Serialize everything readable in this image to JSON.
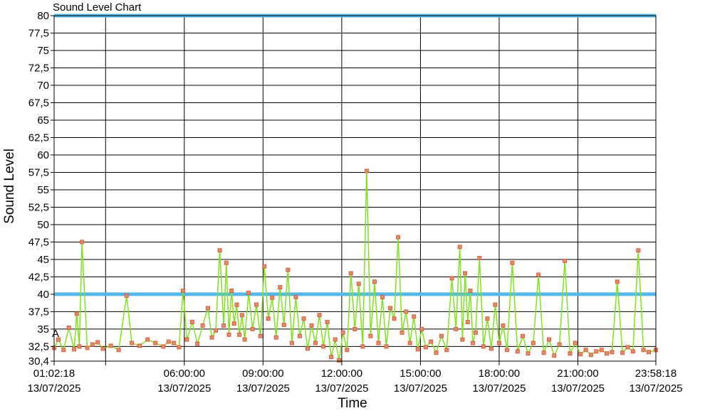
{
  "title": "Sound Level Chart",
  "chart_data": {
    "type": "line",
    "title": "Sound Level Chart",
    "xlabel": "Time",
    "ylabel": "Sound Level",
    "ylim": [
      30.4,
      80
    ],
    "xlim": [
      "13/07/2025 01:02:18",
      "13/07/2025 23:58:18"
    ],
    "grid": true,
    "y_ticks": [
      "30,4",
      "32,5",
      "35",
      "37,5",
      "40",
      "42,5",
      "45",
      "47,5",
      "50",
      "52,5",
      "55",
      "57,5",
      "60",
      "62,5",
      "65",
      "67,5",
      "70",
      "72,5",
      "75",
      "77,5",
      "80"
    ],
    "y_tick_values": [
      30.4,
      32.5,
      35,
      37.5,
      40,
      42.5,
      45,
      47.5,
      50,
      52.5,
      55,
      57.5,
      60,
      62.5,
      65,
      67.5,
      70,
      72.5,
      75,
      77.5,
      80
    ],
    "x_ticks": [
      {
        "time": "01:02:18",
        "date": "13/07/2025",
        "hours": 1.0383
      },
      {
        "time": "06:00:00",
        "date": "13/07/2025",
        "hours": 6
      },
      {
        "time": "09:00:00",
        "date": "13/07/2025",
        "hours": 9
      },
      {
        "time": "12:00:00",
        "date": "13/07/2025",
        "hours": 12
      },
      {
        "time": "15:00:00",
        "date": "13/07/2025",
        "hours": 15
      },
      {
        "time": "18:00:00",
        "date": "13/07/2025",
        "hours": 18
      },
      {
        "time": "21:00:00",
        "date": "13/07/2025",
        "hours": 21
      },
      {
        "time": "23:58:18",
        "date": "13/07/2025",
        "hours": 23.9717
      }
    ],
    "x_gridlines_hours": [
      3,
      6,
      9,
      12,
      15,
      18,
      21
    ],
    "reference_lines": [
      {
        "value": 40,
        "color": "#55B8EA"
      },
      {
        "value": 80,
        "color": "#55B8EA"
      }
    ],
    "annotations": [
      {
        "text": "A",
        "hours": 1.12,
        "value": 34.4
      }
    ],
    "series": [
      {
        "line_color": "#7FE21E",
        "marker_color": "#E35A36",
        "marker_fill": "#D89070",
        "x_hours": [
          1.04,
          1.2,
          1.4,
          1.6,
          1.8,
          1.9,
          2.0,
          2.1,
          2.3,
          2.5,
          2.7,
          2.9,
          3.2,
          3.5,
          3.8,
          4.0,
          4.3,
          4.6,
          4.9,
          5.2,
          5.4,
          5.6,
          5.8,
          5.95,
          6.1,
          6.3,
          6.5,
          6.7,
          6.9,
          7.05,
          7.2,
          7.35,
          7.5,
          7.6,
          7.7,
          7.8,
          7.9,
          8.0,
          8.1,
          8.2,
          8.3,
          8.45,
          8.6,
          8.75,
          8.9,
          9.05,
          9.2,
          9.35,
          9.5,
          9.65,
          9.8,
          9.95,
          10.1,
          10.25,
          10.4,
          10.55,
          10.7,
          10.85,
          11.0,
          11.15,
          11.3,
          11.45,
          11.6,
          11.75,
          11.9,
          12.05,
          12.2,
          12.35,
          12.5,
          12.65,
          12.8,
          12.95,
          13.1,
          13.25,
          13.4,
          13.55,
          13.7,
          13.85,
          14.0,
          14.15,
          14.3,
          14.45,
          14.6,
          14.75,
          14.9,
          15.05,
          15.2,
          15.4,
          15.6,
          15.8,
          16.0,
          16.2,
          16.35,
          16.5,
          16.6,
          16.7,
          16.8,
          16.9,
          17.0,
          17.1,
          17.25,
          17.4,
          17.55,
          17.7,
          17.85,
          18.0,
          18.15,
          18.3,
          18.5,
          18.7,
          18.9,
          19.1,
          19.3,
          19.5,
          19.7,
          19.9,
          20.1,
          20.3,
          20.5,
          20.7,
          20.9,
          21.1,
          21.3,
          21.5,
          21.7,
          21.9,
          22.1,
          22.3,
          22.5,
          22.7,
          22.9,
          23.1,
          23.3,
          23.5,
          23.7,
          23.97
        ],
        "values": [
          32.3,
          33.5,
          32.0,
          35.2,
          32.1,
          37.2,
          32.5,
          47.5,
          32.3,
          32.8,
          33.1,
          32.2,
          32.6,
          32.0,
          39.8,
          33.0,
          32.6,
          33.5,
          33.0,
          32.5,
          33.2,
          33.0,
          32.4,
          40.5,
          33.5,
          36.0,
          32.9,
          35.5,
          38.0,
          33.8,
          34.8,
          46.3,
          35.5,
          44.5,
          34.2,
          40.5,
          35.8,
          38.5,
          34.2,
          37.0,
          33.5,
          40.2,
          35.0,
          38.5,
          34.0,
          44.0,
          36.5,
          39.5,
          33.8,
          41.0,
          35.6,
          43.5,
          33.0,
          39.6,
          34.0,
          36.5,
          32.2,
          35.5,
          33.0,
          37.0,
          32.5,
          36.0,
          31.0,
          33.5,
          30.5,
          34.5,
          32.0,
          43.0,
          35.0,
          41.5,
          32.5,
          57.7,
          34.0,
          41.8,
          33.0,
          39.6,
          32.5,
          38.0,
          36.5,
          48.2,
          34.5,
          37.5,
          33.0,
          36.8,
          32.1,
          35.0,
          32.4,
          33.2,
          31.6,
          34.0,
          32.0,
          42.3,
          35.0,
          46.8,
          33.5,
          43.0,
          36.0,
          40.5,
          33.0,
          34.5,
          45.2,
          32.5,
          36.5,
          32.2,
          38.5,
          33.0,
          35.5,
          32.0,
          44.5,
          31.8,
          34.0,
          31.5,
          33.0,
          42.8,
          31.6,
          33.5,
          31.2,
          32.8,
          44.8,
          31.5,
          33.0,
          31.4,
          32.0,
          31.3,
          31.8,
          32.0,
          31.5,
          31.7,
          41.8,
          31.6,
          32.4,
          31.8,
          46.3,
          32.0,
          31.7,
          32.0
        ]
      }
    ]
  }
}
